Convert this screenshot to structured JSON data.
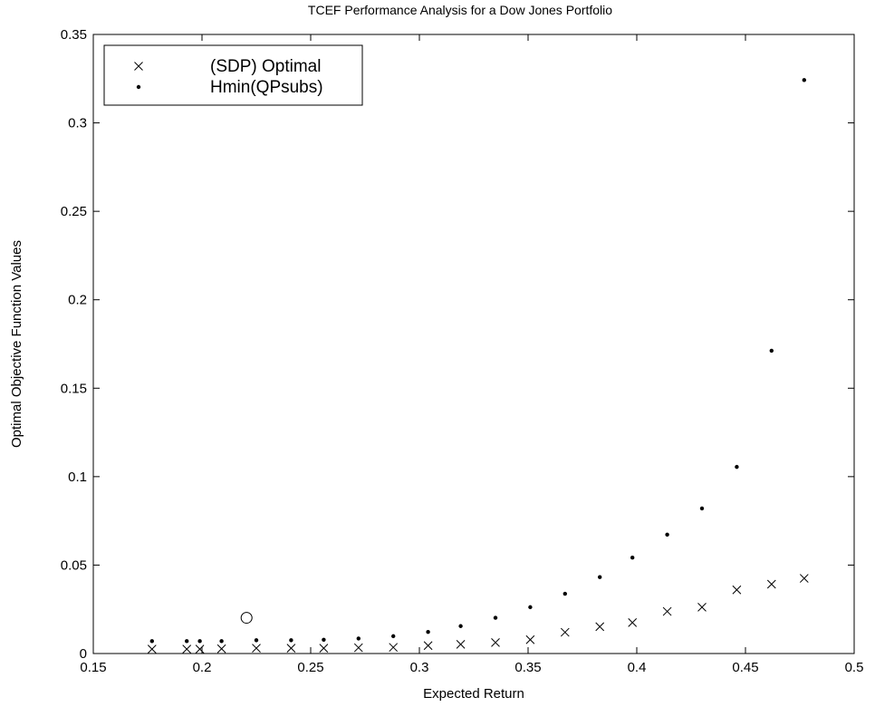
{
  "chart_data": {
    "type": "scatter",
    "title": "TCEF Performance Analysis for a Dow Jones Portfolio",
    "xlabel": "Expected Return",
    "ylabel": "Optimal Objective Function Values",
    "xlim": [
      0.15,
      0.5
    ],
    "ylim": [
      0,
      0.35
    ],
    "x_ticks": [
      "0.15",
      "0.2",
      "0.25",
      "0.3",
      "0.35",
      "0.4",
      "0.45",
      "0.5"
    ],
    "y_ticks": [
      "0",
      "0.05",
      "0.1",
      "0.15",
      "0.2",
      "0.25",
      "0.3",
      "0.35"
    ],
    "grid": false,
    "legend_position": "top-left",
    "series": [
      {
        "name": "(SDP) Optimal",
        "marker": "x",
        "points": [
          [
            0.177,
            0.0025
          ],
          [
            0.193,
            0.0025
          ],
          [
            0.199,
            0.0025
          ],
          [
            0.209,
            0.0027
          ],
          [
            0.225,
            0.003
          ],
          [
            0.241,
            0.003
          ],
          [
            0.256,
            0.003
          ],
          [
            0.272,
            0.0033
          ],
          [
            0.288,
            0.0035
          ],
          [
            0.304,
            0.0045
          ],
          [
            0.319,
            0.0052
          ],
          [
            0.335,
            0.0062
          ],
          [
            0.351,
            0.0078
          ],
          [
            0.367,
            0.012
          ],
          [
            0.383,
            0.0152
          ],
          [
            0.398,
            0.0175
          ],
          [
            0.414,
            0.0238
          ],
          [
            0.43,
            0.0262
          ],
          [
            0.446,
            0.036
          ],
          [
            0.462,
            0.0392
          ],
          [
            0.477,
            0.0425
          ]
        ]
      },
      {
        "name": "Hmin(QPsubs)",
        "marker": "dot",
        "points": [
          [
            0.177,
            0.007
          ],
          [
            0.193,
            0.007
          ],
          [
            0.199,
            0.007
          ],
          [
            0.209,
            0.007
          ],
          [
            0.225,
            0.0075
          ],
          [
            0.241,
            0.0075
          ],
          [
            0.256,
            0.0078
          ],
          [
            0.272,
            0.0085
          ],
          [
            0.288,
            0.0098
          ],
          [
            0.304,
            0.0122
          ],
          [
            0.319,
            0.0155
          ],
          [
            0.335,
            0.0202
          ],
          [
            0.351,
            0.0262
          ],
          [
            0.367,
            0.0338
          ],
          [
            0.383,
            0.0432
          ],
          [
            0.398,
            0.0542
          ],
          [
            0.414,
            0.0672
          ],
          [
            0.43,
            0.082
          ],
          [
            0.446,
            0.1055
          ],
          [
            0.462,
            0.1712
          ],
          [
            0.477,
            0.3242
          ]
        ]
      }
    ],
    "annotations": [
      {
        "marker": "circle",
        "x": 0.2205,
        "y": 0.0202
      }
    ]
  }
}
